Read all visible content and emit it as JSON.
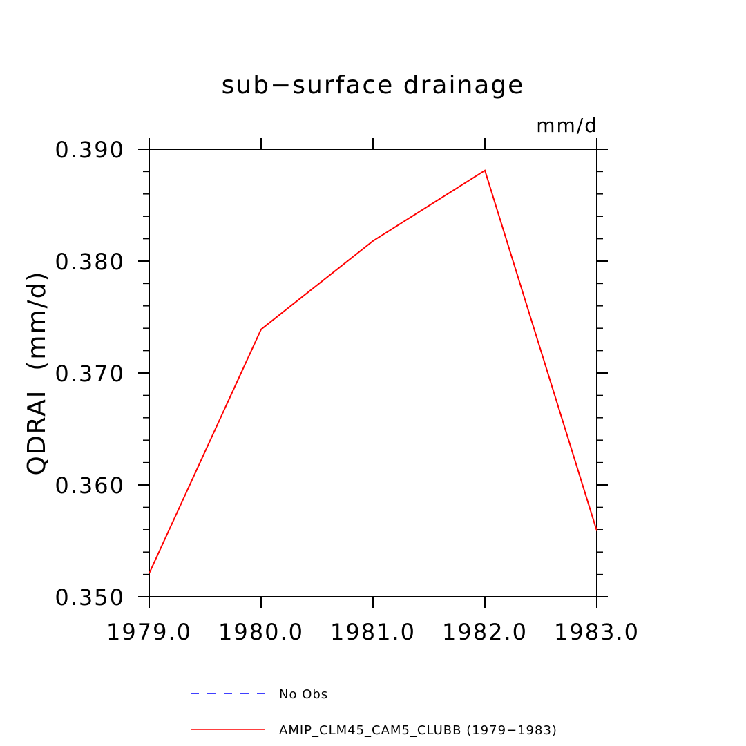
{
  "chart_data": {
    "type": "line",
    "title": "sub−surface drainage",
    "units_label": "mm/d",
    "ylabel": "QDRAI  (mm/d)",
    "xlabel": "",
    "xlim": [
      1979.0,
      1983.0
    ],
    "ylim": [
      0.35,
      0.39
    ],
    "x_ticks": [
      1979.0,
      1980.0,
      1981.0,
      1982.0,
      1983.0
    ],
    "x_tick_labels": [
      "1979.0",
      "1980.0",
      "1981.0",
      "1982.0",
      "1983.0"
    ],
    "y_ticks": [
      0.35,
      0.36,
      0.37,
      0.38,
      0.39
    ],
    "y_tick_labels": [
      "0.350",
      "0.360",
      "0.370",
      "0.380",
      "0.390"
    ],
    "y_minor_step": 0.002,
    "x_minor_ticks": false,
    "grid": false,
    "legend_position": "bottom",
    "series": [
      {
        "name": "AMIP_CLM45_CAM5_CLUBB (1979−1983)",
        "color": "#ff0000",
        "style": "solid",
        "x": [
          1979.0,
          1980.0,
          1981.0,
          1982.0,
          1983.0
        ],
        "y": [
          0.3521,
          0.3739,
          0.3818,
          0.3881,
          0.3559
        ]
      }
    ],
    "legend": [
      {
        "name": "No Obs",
        "color": "#0000ff",
        "style": "dashed"
      },
      {
        "name": "AMIP_CLM45_CAM5_CLUBB (1979−1983)",
        "color": "#ff0000",
        "style": "solid"
      }
    ]
  }
}
